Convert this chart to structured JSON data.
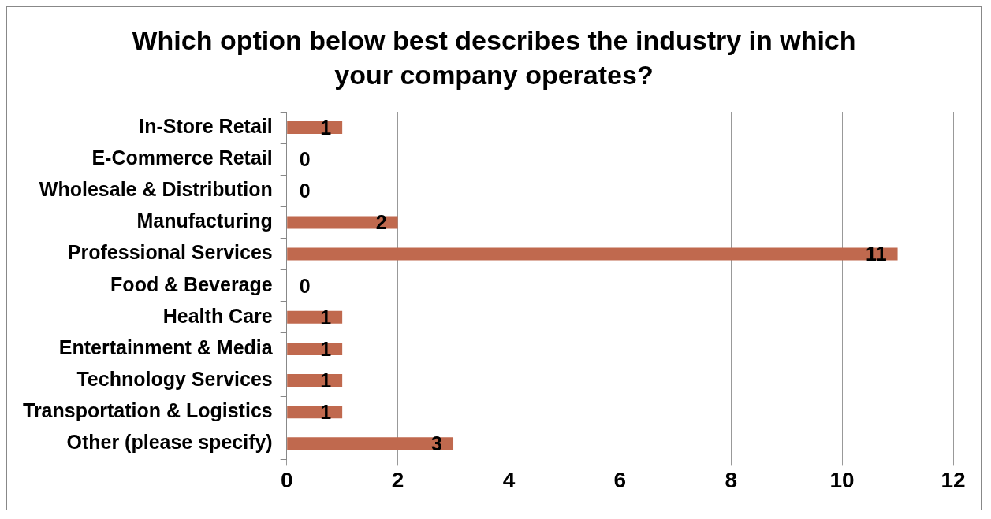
{
  "chart_data": {
    "type": "bar",
    "orientation": "horizontal",
    "title": "Which option below best describes the industry in which your company operates?",
    "categories": [
      "In-Store Retail",
      "E-Commerce Retail",
      "Wholesale & Distribution",
      "Manufacturing",
      "Professional Services",
      "Food & Beverage",
      "Health Care",
      "Entertainment & Media",
      "Technology Services",
      "Transportation & Logistics",
      "Other (please specify)"
    ],
    "values": [
      1,
      0,
      0,
      2,
      11,
      0,
      1,
      1,
      1,
      1,
      3
    ],
    "color": "#c0694e",
    "xlim": [
      0,
      12
    ],
    "xticks": [
      0,
      2,
      4,
      6,
      8,
      10,
      12
    ],
    "grid": "x",
    "legend": false,
    "data_labels": true
  }
}
